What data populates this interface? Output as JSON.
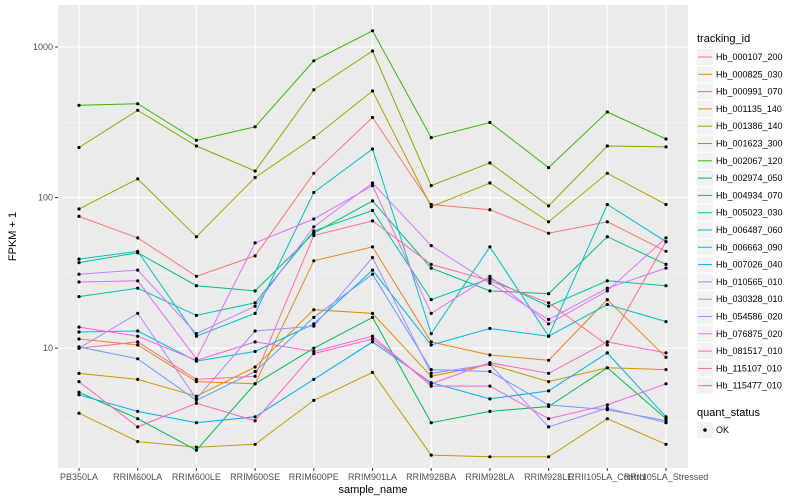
{
  "chart_data": {
    "type": "line",
    "title": "",
    "xlabel": "sample_name",
    "ylabel": "FPKM + 1",
    "yscale": "log10",
    "ylim": [
      1.6,
      1900
    ],
    "yticks": [
      10,
      100,
      1000
    ],
    "ytick_labels": [
      "10",
      "100",
      "1000"
    ],
    "grid": true,
    "legend_position": "right",
    "categories": [
      "PB350LA",
      "RRIM600LA",
      "RRIM600LE",
      "RRIM600SE",
      "RRIM600PE",
      "RRIM901LA",
      "RRIM928BA",
      "RRIM928LA",
      "RRIM928LE",
      "RRII105LA_Control",
      "RRII105LA_Stressed"
    ],
    "x_tick_labels": [
      "PB350LA",
      "RRIM600LA",
      "RRIM600LE",
      "RRIM600SE",
      "RRIM600PE",
      "RRIM901LA",
      "RRIM928BA",
      "RRIM928LA",
      "RRIM928LE",
      "RRII105LA_Control",
      "RRII105LA_Stressed"
    ],
    "series": [
      {
        "name": "Hb_000107_200",
        "color": "#F8766D",
        "values": [
          75,
          54,
          30,
          41,
          145,
          340,
          90,
          83,
          58,
          69,
          44
        ]
      },
      {
        "name": "Hb_000825_030",
        "color": "#E7861B",
        "values": [
          11.5,
          10.5,
          6.0,
          5.8,
          38,
          47,
          11,
          9.0,
          8.3,
          21,
          8.7
        ]
      },
      {
        "name": "Hb_000991_070",
        "color": "#D39200",
        "values": [
          6.8,
          6.2,
          4.8,
          7.5,
          18,
          17,
          6.5,
          7.8,
          6.0,
          7.4,
          7.2
        ]
      },
      {
        "name": "Hb_001135_140",
        "color": "#BE9C00",
        "values": [
          3.7,
          2.4,
          2.2,
          2.3,
          4.5,
          6.9,
          1.95,
          1.9,
          1.9,
          3.4,
          2.3
        ]
      },
      {
        "name": "Hb_001386_140",
        "color": "#A3A500",
        "values": [
          84,
          133,
          55,
          136,
          250,
          510,
          87,
          125,
          69,
          145,
          90
        ]
      },
      {
        "name": "Hb_001623_300",
        "color": "#7CAE00",
        "values": [
          215,
          380,
          220,
          150,
          520,
          940,
          120,
          170,
          88,
          220,
          217
        ]
      },
      {
        "name": "Hb_002067_120",
        "color": "#39B600",
        "values": [
          410,
          420,
          240,
          295,
          810,
          1280,
          250,
          315,
          158,
          370,
          245
        ]
      },
      {
        "name": "Hb_002974_050",
        "color": "#00BB4E",
        "values": [
          5.1,
          3.4,
          2.1,
          5.8,
          10,
          16,
          3.2,
          3.8,
          4.1,
          7.4,
          3.4
        ]
      },
      {
        "name": "Hb_004934_070",
        "color": "#00BF7D",
        "values": [
          37,
          43,
          26,
          24,
          58,
          95,
          34,
          24,
          23,
          55,
          36
        ]
      },
      {
        "name": "Hb_005023_030",
        "color": "#00C1A3",
        "values": [
          22,
          25,
          16.5,
          20,
          60,
          82,
          21,
          29,
          19,
          28,
          26
        ]
      },
      {
        "name": "Hb_006487_060",
        "color": "#00BFC4",
        "values": [
          39,
          44,
          12,
          17,
          108,
          210,
          12.5,
          47,
          12,
          90,
          51
        ]
      },
      {
        "name": "Hb_006663_090",
        "color": "#00B8E5",
        "values": [
          12.8,
          13,
          8.2,
          9.5,
          14.5,
          33,
          10.5,
          13.5,
          12,
          19.5,
          15
        ]
      },
      {
        "name": "Hb_007026_040",
        "color": "#00ABFD",
        "values": [
          4.9,
          3.8,
          3.2,
          3.5,
          6.2,
          11,
          5.9,
          4.6,
          5.2,
          9.3,
          3.5
        ]
      },
      {
        "name": "Hb_010565_010",
        "color": "#619CFF",
        "values": [
          10.2,
          8.5,
          4.5,
          7.0,
          16,
          31,
          7.2,
          7.0,
          4.2,
          3.9,
          3.3
        ]
      },
      {
        "name": "Hb_030328_010",
        "color": "#A58AFF",
        "values": [
          10,
          17,
          4.6,
          13,
          14,
          40,
          6.8,
          7.8,
          3.0,
          4.0,
          3.2
        ]
      },
      {
        "name": "Hb_054586_020",
        "color": "#C77CFF",
        "values": [
          31,
          33,
          12.5,
          19,
          64,
          125,
          48,
          27,
          15.5,
          25,
          34
        ]
      },
      {
        "name": "Hb_076875_020",
        "color": "#E76BF3",
        "values": [
          27.5,
          28,
          8.5,
          50,
          72,
          120,
          17,
          30,
          14.5,
          24,
          54
        ]
      },
      {
        "name": "Hb_081517_010",
        "color": "#FA62DB",
        "values": [
          13.8,
          12,
          8.3,
          11,
          9.5,
          12,
          5.6,
          5.6,
          3.4,
          4.2,
          5.8
        ]
      },
      {
        "name": "Hb_115107_010",
        "color": "#FF62BC",
        "values": [
          6.0,
          3.0,
          4.3,
          3.3,
          9.2,
          11.5,
          5.8,
          8.0,
          6.8,
          11,
          9.3
        ]
      },
      {
        "name": "Hb_115477_010",
        "color": "#FF6C91",
        "values": [
          10,
          11,
          6.2,
          6.5,
          56,
          70,
          36,
          28,
          20,
          10.5,
          51
        ]
      }
    ],
    "legend": {
      "title": "tracking_id",
      "quant_title": "quant_status",
      "quant_label": "OK"
    }
  }
}
